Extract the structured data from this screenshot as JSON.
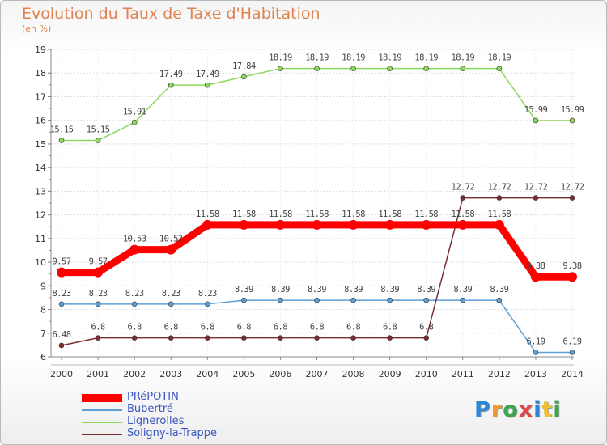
{
  "title": "Evolution du Taux de Taxe d'Habitation",
  "subtitle": "(en %)",
  "logo": {
    "text": "Proxiti",
    "colors": [
      "#2a86d8",
      "#f09a2a",
      "#3aa84a",
      "#e24646",
      "#2a86d8",
      "#f0c030",
      "#3aa84a"
    ]
  },
  "chart_data": {
    "type": "line",
    "x": [
      2000,
      2001,
      2002,
      2003,
      2004,
      2005,
      2006,
      2007,
      2008,
      2009,
      2010,
      2011,
      2012,
      2013,
      2014
    ],
    "ylim": [
      6,
      19
    ],
    "yticks": [
      6,
      7,
      8,
      9,
      10,
      11,
      12,
      13,
      14,
      15,
      16,
      17,
      18,
      19
    ],
    "grid": true,
    "legend_position": "bottom-left",
    "series": [
      {
        "name": "PRéPOTIN",
        "color": "#ff0000",
        "values": [
          9.57,
          9.57,
          10.53,
          10.53,
          11.58,
          11.58,
          11.58,
          11.58,
          11.58,
          11.58,
          11.58,
          11.58,
          11.58,
          9.38,
          9.38
        ],
        "labels": [
          "9.57",
          "9.57",
          "10.53",
          "10.53",
          "11.58",
          "11.58",
          "11.58",
          "11.58",
          "11.58",
          "11.58",
          "11.58",
          "11.58",
          "11.58",
          "9.38",
          "9.38"
        ]
      },
      {
        "name": "Bubertré",
        "color": "#5e9fd6",
        "values": [
          8.23,
          8.23,
          8.23,
          8.23,
          8.23,
          8.39,
          8.39,
          8.39,
          8.39,
          8.39,
          8.39,
          8.39,
          8.39,
          6.19,
          6.19
        ],
        "labels": [
          "8.23",
          "8.23",
          "8.23",
          "8.23",
          "8.23",
          "8.39",
          "8.39",
          "8.39",
          "8.39",
          "8.39",
          "8.39",
          "8.39",
          "8.39",
          "6.19",
          "6.19"
        ]
      },
      {
        "name": "Lignerolles",
        "color": "#8ed75e",
        "values": [
          15.15,
          15.15,
          15.91,
          17.49,
          17.49,
          17.84,
          18.19,
          18.19,
          18.19,
          18.19,
          18.19,
          18.19,
          18.19,
          15.99,
          15.99
        ],
        "labels": [
          "15.15",
          "15.15",
          "15.91",
          "17.49",
          "17.49",
          "17.84",
          "18.19",
          "18.19",
          "18.19",
          "18.19",
          "18.19",
          "18.19",
          "18.19",
          "15.99",
          "15.99"
        ]
      },
      {
        "name": "Soligny-la-Trappe",
        "color": "#7a2e2e",
        "values": [
          6.48,
          6.8,
          6.8,
          6.8,
          6.8,
          6.8,
          6.8,
          6.8,
          6.8,
          6.8,
          6.8,
          12.72,
          12.72,
          12.72,
          12.72
        ],
        "labels": [
          "6.48",
          "6.8",
          "6.8",
          "6.8",
          "6.8",
          "6.8",
          "6.8",
          "6.8",
          "6.8",
          "6.8",
          "6.8",
          "12.72",
          "12.72",
          "12.72",
          "12.72"
        ]
      }
    ]
  }
}
